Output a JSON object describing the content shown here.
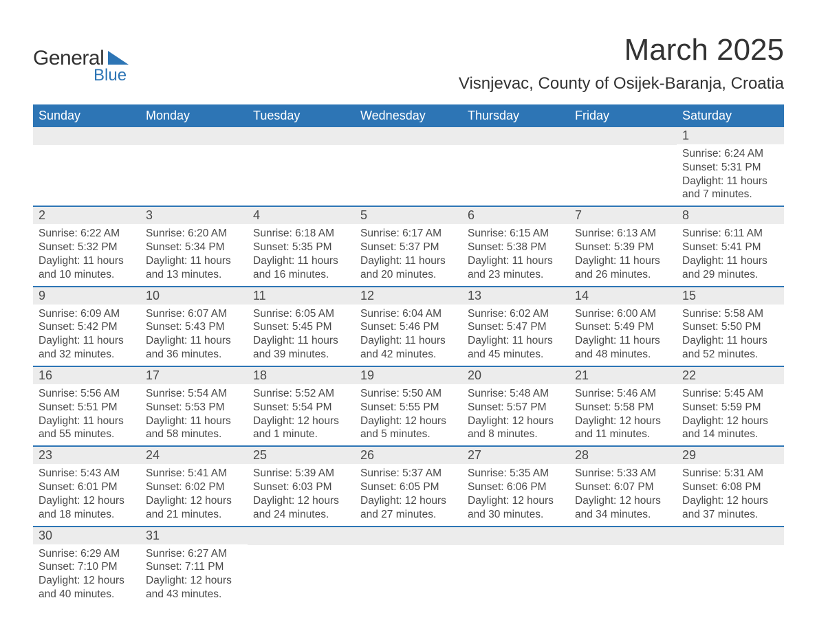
{
  "logo": {
    "line1": "General",
    "line2": "Blue"
  },
  "header": {
    "month_title": "March 2025",
    "location": "Visnjevac, County of Osijek-Baranja, Croatia"
  },
  "colors": {
    "brand": "#2d75b5",
    "header_bg": "#2d75b5",
    "header_text": "#ffffff",
    "daynum_bg": "#ececec",
    "body_text": "#4a4a4a",
    "page_bg": "#ffffff"
  },
  "typography": {
    "title_fontsize_pt": 33,
    "location_fontsize_pt": 18,
    "dayheader_fontsize_pt": 14,
    "body_fontsize_pt": 12
  },
  "calendar": {
    "day_headers": [
      "Sunday",
      "Monday",
      "Tuesday",
      "Wednesday",
      "Thursday",
      "Friday",
      "Saturday"
    ],
    "weeks": [
      [
        null,
        null,
        null,
        null,
        null,
        null,
        {
          "n": "1",
          "sunrise": "Sunrise: 6:24 AM",
          "sunset": "Sunset: 5:31 PM",
          "daylight1": "Daylight: 11 hours",
          "daylight2": "and 7 minutes."
        }
      ],
      [
        {
          "n": "2",
          "sunrise": "Sunrise: 6:22 AM",
          "sunset": "Sunset: 5:32 PM",
          "daylight1": "Daylight: 11 hours",
          "daylight2": "and 10 minutes."
        },
        {
          "n": "3",
          "sunrise": "Sunrise: 6:20 AM",
          "sunset": "Sunset: 5:34 PM",
          "daylight1": "Daylight: 11 hours",
          "daylight2": "and 13 minutes."
        },
        {
          "n": "4",
          "sunrise": "Sunrise: 6:18 AM",
          "sunset": "Sunset: 5:35 PM",
          "daylight1": "Daylight: 11 hours",
          "daylight2": "and 16 minutes."
        },
        {
          "n": "5",
          "sunrise": "Sunrise: 6:17 AM",
          "sunset": "Sunset: 5:37 PM",
          "daylight1": "Daylight: 11 hours",
          "daylight2": "and 20 minutes."
        },
        {
          "n": "6",
          "sunrise": "Sunrise: 6:15 AM",
          "sunset": "Sunset: 5:38 PM",
          "daylight1": "Daylight: 11 hours",
          "daylight2": "and 23 minutes."
        },
        {
          "n": "7",
          "sunrise": "Sunrise: 6:13 AM",
          "sunset": "Sunset: 5:39 PM",
          "daylight1": "Daylight: 11 hours",
          "daylight2": "and 26 minutes."
        },
        {
          "n": "8",
          "sunrise": "Sunrise: 6:11 AM",
          "sunset": "Sunset: 5:41 PM",
          "daylight1": "Daylight: 11 hours",
          "daylight2": "and 29 minutes."
        }
      ],
      [
        {
          "n": "9",
          "sunrise": "Sunrise: 6:09 AM",
          "sunset": "Sunset: 5:42 PM",
          "daylight1": "Daylight: 11 hours",
          "daylight2": "and 32 minutes."
        },
        {
          "n": "10",
          "sunrise": "Sunrise: 6:07 AM",
          "sunset": "Sunset: 5:43 PM",
          "daylight1": "Daylight: 11 hours",
          "daylight2": "and 36 minutes."
        },
        {
          "n": "11",
          "sunrise": "Sunrise: 6:05 AM",
          "sunset": "Sunset: 5:45 PM",
          "daylight1": "Daylight: 11 hours",
          "daylight2": "and 39 minutes."
        },
        {
          "n": "12",
          "sunrise": "Sunrise: 6:04 AM",
          "sunset": "Sunset: 5:46 PM",
          "daylight1": "Daylight: 11 hours",
          "daylight2": "and 42 minutes."
        },
        {
          "n": "13",
          "sunrise": "Sunrise: 6:02 AM",
          "sunset": "Sunset: 5:47 PM",
          "daylight1": "Daylight: 11 hours",
          "daylight2": "and 45 minutes."
        },
        {
          "n": "14",
          "sunrise": "Sunrise: 6:00 AM",
          "sunset": "Sunset: 5:49 PM",
          "daylight1": "Daylight: 11 hours",
          "daylight2": "and 48 minutes."
        },
        {
          "n": "15",
          "sunrise": "Sunrise: 5:58 AM",
          "sunset": "Sunset: 5:50 PM",
          "daylight1": "Daylight: 11 hours",
          "daylight2": "and 52 minutes."
        }
      ],
      [
        {
          "n": "16",
          "sunrise": "Sunrise: 5:56 AM",
          "sunset": "Sunset: 5:51 PM",
          "daylight1": "Daylight: 11 hours",
          "daylight2": "and 55 minutes."
        },
        {
          "n": "17",
          "sunrise": "Sunrise: 5:54 AM",
          "sunset": "Sunset: 5:53 PM",
          "daylight1": "Daylight: 11 hours",
          "daylight2": "and 58 minutes."
        },
        {
          "n": "18",
          "sunrise": "Sunrise: 5:52 AM",
          "sunset": "Sunset: 5:54 PM",
          "daylight1": "Daylight: 12 hours",
          "daylight2": "and 1 minute."
        },
        {
          "n": "19",
          "sunrise": "Sunrise: 5:50 AM",
          "sunset": "Sunset: 5:55 PM",
          "daylight1": "Daylight: 12 hours",
          "daylight2": "and 5 minutes."
        },
        {
          "n": "20",
          "sunrise": "Sunrise: 5:48 AM",
          "sunset": "Sunset: 5:57 PM",
          "daylight1": "Daylight: 12 hours",
          "daylight2": "and 8 minutes."
        },
        {
          "n": "21",
          "sunrise": "Sunrise: 5:46 AM",
          "sunset": "Sunset: 5:58 PM",
          "daylight1": "Daylight: 12 hours",
          "daylight2": "and 11 minutes."
        },
        {
          "n": "22",
          "sunrise": "Sunrise: 5:45 AM",
          "sunset": "Sunset: 5:59 PM",
          "daylight1": "Daylight: 12 hours",
          "daylight2": "and 14 minutes."
        }
      ],
      [
        {
          "n": "23",
          "sunrise": "Sunrise: 5:43 AM",
          "sunset": "Sunset: 6:01 PM",
          "daylight1": "Daylight: 12 hours",
          "daylight2": "and 18 minutes."
        },
        {
          "n": "24",
          "sunrise": "Sunrise: 5:41 AM",
          "sunset": "Sunset: 6:02 PM",
          "daylight1": "Daylight: 12 hours",
          "daylight2": "and 21 minutes."
        },
        {
          "n": "25",
          "sunrise": "Sunrise: 5:39 AM",
          "sunset": "Sunset: 6:03 PM",
          "daylight1": "Daylight: 12 hours",
          "daylight2": "and 24 minutes."
        },
        {
          "n": "26",
          "sunrise": "Sunrise: 5:37 AM",
          "sunset": "Sunset: 6:05 PM",
          "daylight1": "Daylight: 12 hours",
          "daylight2": "and 27 minutes."
        },
        {
          "n": "27",
          "sunrise": "Sunrise: 5:35 AM",
          "sunset": "Sunset: 6:06 PM",
          "daylight1": "Daylight: 12 hours",
          "daylight2": "and 30 minutes."
        },
        {
          "n": "28",
          "sunrise": "Sunrise: 5:33 AM",
          "sunset": "Sunset: 6:07 PM",
          "daylight1": "Daylight: 12 hours",
          "daylight2": "and 34 minutes."
        },
        {
          "n": "29",
          "sunrise": "Sunrise: 5:31 AM",
          "sunset": "Sunset: 6:08 PM",
          "daylight1": "Daylight: 12 hours",
          "daylight2": "and 37 minutes."
        }
      ],
      [
        {
          "n": "30",
          "sunrise": "Sunrise: 6:29 AM",
          "sunset": "Sunset: 7:10 PM",
          "daylight1": "Daylight: 12 hours",
          "daylight2": "and 40 minutes."
        },
        {
          "n": "31",
          "sunrise": "Sunrise: 6:27 AM",
          "sunset": "Sunset: 7:11 PM",
          "daylight1": "Daylight: 12 hours",
          "daylight2": "and 43 minutes."
        },
        null,
        null,
        null,
        null,
        null
      ]
    ]
  }
}
